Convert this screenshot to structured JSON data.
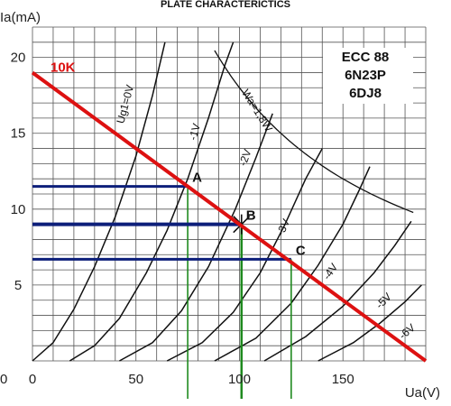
{
  "chart_data": {
    "type": "line",
    "title": "PLATE CHARACTERICTICS",
    "xlabel": "Ua(V)",
    "ylabel": "Ia(mA)",
    "xlim": [
      0,
      190
    ],
    "ylim": [
      0,
      22
    ],
    "x_ticks": [
      0,
      50,
      100,
      150
    ],
    "y_ticks": [
      5,
      10,
      15,
      20
    ],
    "grid": true,
    "tube_labels": [
      "ECC 88",
      "6N23P",
      "6DJ8"
    ],
    "series": [
      {
        "name": "Ug1=0V",
        "points": [
          [
            0,
            0
          ],
          [
            10,
            1.2
          ],
          [
            20,
            3.4
          ],
          [
            30,
            6.2
          ],
          [
            40,
            9.5
          ],
          [
            50,
            13.5
          ],
          [
            58,
            17.5
          ],
          [
            64,
            21
          ]
        ]
      },
      {
        "name": "-1V",
        "points": [
          [
            18,
            0
          ],
          [
            30,
            1
          ],
          [
            42,
            2.8
          ],
          [
            55,
            5.8
          ],
          [
            65,
            8.6
          ],
          [
            75,
            12
          ],
          [
            85,
            16
          ],
          [
            93,
            19.5
          ],
          [
            97,
            21
          ]
        ]
      },
      {
        "name": "-2V",
        "points": [
          [
            42,
            0
          ],
          [
            58,
            1.2
          ],
          [
            72,
            3.3
          ],
          [
            85,
            6.2
          ],
          [
            98,
            10
          ],
          [
            108,
            13.4
          ],
          [
            116,
            16.3
          ]
        ]
      },
      {
        "name": "-3V",
        "points": [
          [
            65,
            0
          ],
          [
            82,
            1.2
          ],
          [
            97,
            3.2
          ],
          [
            110,
            5.8
          ],
          [
            122,
            9
          ],
          [
            132,
            12
          ],
          [
            140,
            14
          ]
        ]
      },
      {
        "name": "-4V",
        "points": [
          [
            88,
            0
          ],
          [
            108,
            1.5
          ],
          [
            125,
            3.8
          ],
          [
            138,
            6.3
          ],
          [
            150,
            9
          ],
          [
            158,
            11.3
          ],
          [
            163,
            12.8
          ]
        ]
      },
      {
        "name": "-5V",
        "points": [
          [
            112,
            0
          ],
          [
            132,
            1.6
          ],
          [
            150,
            3.6
          ],
          [
            165,
            5.8
          ],
          [
            175,
            7.6
          ],
          [
            183,
            9.2
          ]
        ]
      },
      {
        "name": "-6V",
        "points": [
          [
            138,
            0
          ],
          [
            155,
            1.2
          ],
          [
            168,
            2.5
          ],
          [
            180,
            3.9
          ],
          [
            188,
            5
          ]
        ]
      }
    ],
    "max_dissipation": {
      "name": "Wa=1,8W",
      "watts": 1.8,
      "x_range": [
        88,
        185
      ]
    },
    "load_line": {
      "name": "10K",
      "x0": 0,
      "y0": 19,
      "x1": 190,
      "y1": 0
    },
    "operating_points": [
      {
        "label": "A",
        "ua": 75,
        "ia": 11.5
      },
      {
        "label": "B",
        "ua": 101,
        "ia": 9.0
      },
      {
        "label": "C",
        "ua": 125,
        "ia": 6.7
      }
    ],
    "colors": {
      "load_line": "#dd1111",
      "current_markers": "#0d1f7a",
      "voltage_markers": "#1f8a1f",
      "curves": "#111111",
      "grid": "#555555"
    }
  }
}
